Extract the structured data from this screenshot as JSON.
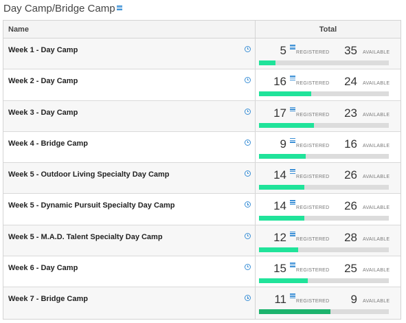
{
  "header": {
    "title": "Day Camp/Bridge Camp"
  },
  "table": {
    "columns": {
      "name": "Name",
      "total": "Total"
    },
    "registered_label": "REGISTERED",
    "available_label": "AVAILABLE",
    "rows": [
      {
        "name": "Week 1 - Day Camp",
        "registered": "5",
        "available": "35",
        "fill_fraction": 0.125
      },
      {
        "name": "Week 2 - Day Camp",
        "registered": "16",
        "available": "24",
        "fill_fraction": 0.4
      },
      {
        "name": "Week 3 - Day Camp",
        "registered": "17",
        "available": "23",
        "fill_fraction": 0.425
      },
      {
        "name": "Week 4 - Bridge Camp",
        "registered": "9",
        "available": "16",
        "fill_fraction": 0.36
      },
      {
        "name": "Week 5 - Outdoor Living Specialty Day Camp",
        "registered": "14",
        "available": "26",
        "fill_fraction": 0.35
      },
      {
        "name": "Week 5 - Dynamic Pursuit Specialty Day Camp",
        "registered": "14",
        "available": "26",
        "fill_fraction": 0.35
      },
      {
        "name": "Week 5 - M.A.D. Talent Specialty Day Camp",
        "registered": "12",
        "available": "28",
        "fill_fraction": 0.3
      },
      {
        "name": "Week 6 - Day Camp",
        "registered": "15",
        "available": "25",
        "fill_fraction": 0.375
      },
      {
        "name": "Week 7 - Bridge Camp",
        "registered": "11",
        "available": "9",
        "fill_fraction": 0.55
      }
    ]
  },
  "colors": {
    "accent": "#3a8fd6",
    "bar_fill": "#20e39a",
    "bar_fill_dark": "#1db36d",
    "bar_track": "#dcdcdc"
  },
  "icons": {
    "title_icon": "list-icon",
    "row_icon": "clock-icon",
    "registered_icon": "list-icon"
  }
}
